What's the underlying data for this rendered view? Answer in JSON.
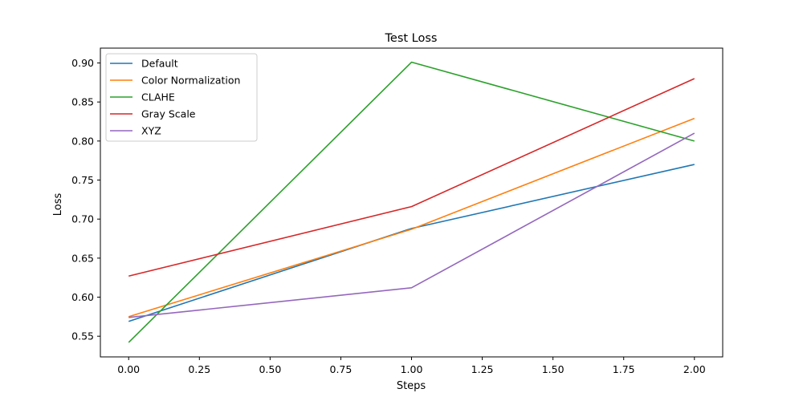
{
  "chart_data": {
    "type": "line",
    "title": "Test Loss",
    "xlabel": "Steps",
    "ylabel": "Loss",
    "x": [
      0,
      1,
      2
    ],
    "xlim": [
      -0.1,
      2.1
    ],
    "ylim": [
      0.5235,
      0.919
    ],
    "xticks": [
      0.0,
      0.25,
      0.5,
      0.75,
      1.0,
      1.25,
      1.5,
      1.75,
      2.0
    ],
    "xtick_labels": [
      "0.00",
      "0.25",
      "0.50",
      "0.75",
      "1.00",
      "1.25",
      "1.50",
      "1.75",
      "2.00"
    ],
    "yticks": [
      0.55,
      0.6,
      0.65,
      0.7,
      0.75,
      0.8,
      0.85,
      0.9
    ],
    "ytick_labels": [
      "0.55",
      "0.60",
      "0.65",
      "0.70",
      "0.75",
      "0.80",
      "0.85",
      "0.90"
    ],
    "grid": false,
    "legend_position": "top-left",
    "series": [
      {
        "name": "Default",
        "color": "#1f77b4",
        "values": [
          0.569,
          0.688,
          0.77
        ]
      },
      {
        "name": "Color Normalization",
        "color": "#ff7f0e",
        "values": [
          0.575,
          0.687,
          0.829
        ]
      },
      {
        "name": "CLAHE",
        "color": "#2ca02c",
        "values": [
          0.542,
          0.901,
          0.8
        ]
      },
      {
        "name": "Gray Scale",
        "color": "#d62728",
        "values": [
          0.627,
          0.716,
          0.88
        ]
      },
      {
        "name": "XYZ",
        "color": "#9467bd",
        "values": [
          0.574,
          0.612,
          0.81
        ]
      }
    ]
  }
}
